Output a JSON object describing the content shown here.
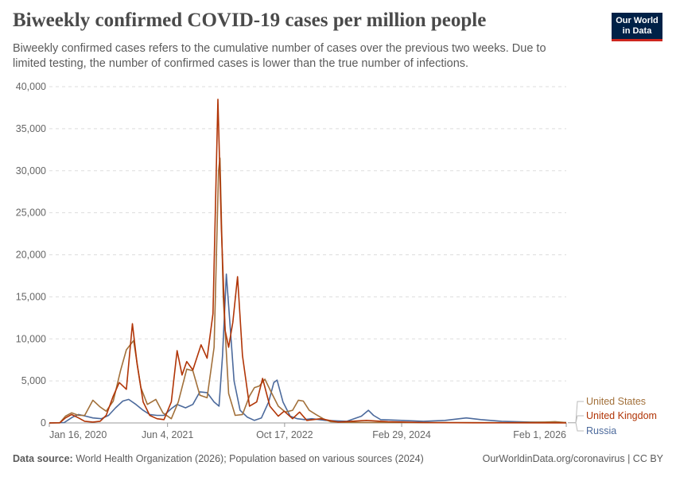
{
  "header": {
    "title": "Biweekly confirmed COVID-19 cases per million people",
    "subtitle": "Biweekly confirmed cases refers to the cumulative number of cases over the previous two weeks. Due to limited testing, the number of confirmed cases is lower than the true number of infections.",
    "logo_line1": "Our World",
    "logo_line2": "in Data"
  },
  "footer": {
    "source_label": "Data source:",
    "source_text": "World Health Organization (2026); Population based on various sources (2024)",
    "right_text": "OurWorldinData.org/coronavirus | CC BY"
  },
  "colors": {
    "United States": "#a2703a",
    "United Kingdom": "#b13507",
    "Russia": "#4c6a9c"
  },
  "chart_data": {
    "type": "line",
    "title": "Biweekly confirmed COVID-19 cases per million people",
    "xlabel": "",
    "ylabel": "",
    "x_tick_labels": [
      "Jan 16, 2020",
      "Jun 4, 2021",
      "Oct 17, 2022",
      "Feb 29, 2024",
      "Feb 1, 2026"
    ],
    "y_tick_labels": [
      "0",
      "5,000",
      "10,000",
      "15,000",
      "20,000",
      "25,000",
      "30,000",
      "35,000",
      "40,000"
    ],
    "xlim": [
      "2020-01-16",
      "2026-02-01"
    ],
    "ylim": [
      0,
      40000
    ],
    "grid": "horizontal dashed",
    "legend": "right, inline labels at line ends",
    "series": [
      {
        "name": "United States",
        "points": [
          [
            "2020-01-16",
            0
          ],
          [
            "2020-03-01",
            20
          ],
          [
            "2020-03-25",
            800
          ],
          [
            "2020-04-20",
            1200
          ],
          [
            "2020-05-20",
            900
          ],
          [
            "2020-06-15",
            900
          ],
          [
            "2020-07-20",
            2700
          ],
          [
            "2020-08-20",
            1900
          ],
          [
            "2020-09-15",
            1400
          ],
          [
            "2020-10-15",
            2600
          ],
          [
            "2020-11-15",
            6200
          ],
          [
            "2020-12-10",
            8700
          ],
          [
            "2021-01-10",
            9800
          ],
          [
            "2021-02-10",
            4200
          ],
          [
            "2021-03-10",
            2200
          ],
          [
            "2021-04-15",
            2800
          ],
          [
            "2021-05-15",
            1200
          ],
          [
            "2021-06-20",
            500
          ],
          [
            "2021-07-20",
            2500
          ],
          [
            "2021-08-25",
            6400
          ],
          [
            "2021-09-20",
            6200
          ],
          [
            "2021-10-20",
            3300
          ],
          [
            "2021-11-20",
            3000
          ],
          [
            "2021-12-20",
            9000
          ],
          [
            "2022-01-08",
            30000
          ],
          [
            "2022-01-14",
            31500
          ],
          [
            "2022-01-28",
            15000
          ],
          [
            "2022-02-20",
            3500
          ],
          [
            "2022-03-20",
            900
          ],
          [
            "2022-04-20",
            1000
          ],
          [
            "2022-05-20",
            3200
          ],
          [
            "2022-06-10",
            4200
          ],
          [
            "2022-07-01",
            4400
          ],
          [
            "2022-07-25",
            5200
          ],
          [
            "2022-08-20",
            3700
          ],
          [
            "2022-09-20",
            2000
          ],
          [
            "2022-10-20",
            1300
          ],
          [
            "2022-11-20",
            1500
          ],
          [
            "2022-12-15",
            2700
          ],
          [
            "2023-01-05",
            2600
          ],
          [
            "2023-01-30",
            1500
          ],
          [
            "2023-02-28",
            1000
          ],
          [
            "2023-03-31",
            500
          ],
          [
            "2023-05-01",
            150
          ],
          [
            "2023-07-01",
            80
          ],
          [
            "2023-10-01",
            60
          ],
          [
            "2024-01-01",
            60
          ],
          [
            "2024-06-01",
            40
          ],
          [
            "2025-01-01",
            40
          ],
          [
            "2025-06-01",
            30
          ],
          [
            "2025-11-01",
            100
          ],
          [
            "2025-12-15",
            150
          ],
          [
            "2026-02-01",
            50
          ]
        ]
      },
      {
        "name": "United Kingdom",
        "points": [
          [
            "2020-01-16",
            0
          ],
          [
            "2020-03-01",
            20
          ],
          [
            "2020-03-25",
            600
          ],
          [
            "2020-04-20",
            1000
          ],
          [
            "2020-05-20",
            600
          ],
          [
            "2020-06-15",
            200
          ],
          [
            "2020-07-20",
            100
          ],
          [
            "2020-08-20",
            200
          ],
          [
            "2020-09-15",
            900
          ],
          [
            "2020-10-15",
            3200
          ],
          [
            "2020-11-10",
            4800
          ],
          [
            "2020-12-10",
            4000
          ],
          [
            "2021-01-05",
            11800
          ],
          [
            "2021-01-25",
            7000
          ],
          [
            "2021-02-20",
            2500
          ],
          [
            "2021-03-20",
            900
          ],
          [
            "2021-04-20",
            500
          ],
          [
            "2021-05-20",
            400
          ],
          [
            "2021-06-20",
            2500
          ],
          [
            "2021-07-15",
            8600
          ],
          [
            "2021-08-05",
            5700
          ],
          [
            "2021-08-25",
            7300
          ],
          [
            "2021-09-20",
            6300
          ],
          [
            "2021-10-25",
            9300
          ],
          [
            "2021-11-20",
            7700
          ],
          [
            "2021-12-15",
            13000
          ],
          [
            "2022-01-05",
            38500
          ],
          [
            "2022-01-20",
            23000
          ],
          [
            "2022-02-05",
            11000
          ],
          [
            "2022-02-20",
            9000
          ],
          [
            "2022-03-10",
            12000
          ],
          [
            "2022-03-30",
            17400
          ],
          [
            "2022-04-20",
            8000
          ],
          [
            "2022-05-20",
            2000
          ],
          [
            "2022-06-20",
            2500
          ],
          [
            "2022-07-15",
            5300
          ],
          [
            "2022-08-15",
            2000
          ],
          [
            "2022-09-20",
            800
          ],
          [
            "2022-10-15",
            1400
          ],
          [
            "2022-11-20",
            500
          ],
          [
            "2022-12-20",
            1300
          ],
          [
            "2023-01-20",
            300
          ],
          [
            "2023-03-20",
            500
          ],
          [
            "2023-06-01",
            100
          ],
          [
            "2023-10-01",
            300
          ],
          [
            "2024-01-01",
            150
          ],
          [
            "2024-06-01",
            50
          ],
          [
            "2025-01-01",
            20
          ],
          [
            "2026-02-01",
            10
          ]
        ]
      },
      {
        "name": "Russia",
        "points": [
          [
            "2020-01-16",
            0
          ],
          [
            "2020-03-20",
            50
          ],
          [
            "2020-04-25",
            700
          ],
          [
            "2020-05-20",
            1000
          ],
          [
            "2020-06-20",
            800
          ],
          [
            "2020-07-20",
            600
          ],
          [
            "2020-08-25",
            500
          ],
          [
            "2020-09-25",
            900
          ],
          [
            "2020-10-25",
            1800
          ],
          [
            "2020-11-25",
            2600
          ],
          [
            "2020-12-20",
            2800
          ],
          [
            "2021-01-20",
            2200
          ],
          [
            "2021-02-20",
            1500
          ],
          [
            "2021-03-20",
            1000
          ],
          [
            "2021-04-20",
            900
          ],
          [
            "2021-05-20",
            900
          ],
          [
            "2021-06-20",
            1700
          ],
          [
            "2021-07-15",
            2200
          ],
          [
            "2021-08-20",
            1800
          ],
          [
            "2021-09-20",
            2200
          ],
          [
            "2021-10-20",
            3700
          ],
          [
            "2021-11-20",
            3600
          ],
          [
            "2021-12-20",
            2500
          ],
          [
            "2022-01-10",
            2000
          ],
          [
            "2022-01-25",
            8000
          ],
          [
            "2022-02-10",
            17700
          ],
          [
            "2022-02-25",
            12000
          ],
          [
            "2022-03-15",
            5000
          ],
          [
            "2022-04-10",
            1500
          ],
          [
            "2022-05-10",
            700
          ],
          [
            "2022-06-10",
            300
          ],
          [
            "2022-07-10",
            600
          ],
          [
            "2022-08-10",
            2500
          ],
          [
            "2022-09-01",
            4800
          ],
          [
            "2022-09-15",
            5100
          ],
          [
            "2022-10-10",
            2500
          ],
          [
            "2022-11-10",
            800
          ],
          [
            "2022-12-10",
            500
          ],
          [
            "2023-01-10",
            400
          ],
          [
            "2023-02-10",
            500
          ],
          [
            "2023-04-10",
            300
          ],
          [
            "2023-07-10",
            200
          ],
          [
            "2023-09-10",
            800
          ],
          [
            "2023-10-10",
            1500
          ],
          [
            "2023-11-01",
            900
          ],
          [
            "2023-12-01",
            400
          ],
          [
            "2024-03-01",
            300
          ],
          [
            "2024-06-01",
            200
          ],
          [
            "2024-09-01",
            300
          ],
          [
            "2024-12-01",
            600
          ],
          [
            "2025-02-01",
            400
          ],
          [
            "2025-05-01",
            200
          ],
          [
            "2025-09-01",
            100
          ],
          [
            "2026-02-01",
            50
          ]
        ]
      }
    ]
  }
}
